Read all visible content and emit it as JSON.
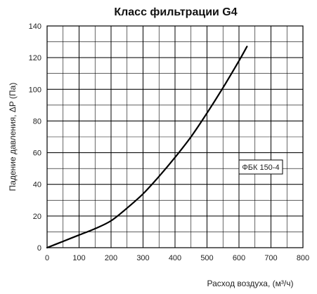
{
  "chart_data": {
    "type": "line",
    "title": "Класс фильтрации G4",
    "xlabel": "Расход воздуха, (м³/ч)",
    "ylabel": "Падение давления, ΔP (Па)",
    "xlim": [
      0,
      800
    ],
    "ylim": [
      0,
      140
    ],
    "x_ticks": [
      0,
      100,
      200,
      300,
      400,
      500,
      600,
      700,
      800
    ],
    "y_ticks": [
      0,
      20,
      40,
      60,
      80,
      100,
      120,
      140
    ],
    "x_minor_step": 50,
    "y_minor_step": 10,
    "grid": true,
    "legend_placement": "right",
    "series": [
      {
        "name": "ФБК 150-4",
        "color": "#000000",
        "x": [
          0,
          50,
          100,
          150,
          200,
          250,
          300,
          350,
          400,
          450,
          500,
          550,
          600,
          625
        ],
        "y": [
          0,
          4,
          8,
          12,
          17,
          25,
          34,
          45,
          57,
          70,
          85,
          101,
          118,
          127
        ]
      }
    ]
  }
}
